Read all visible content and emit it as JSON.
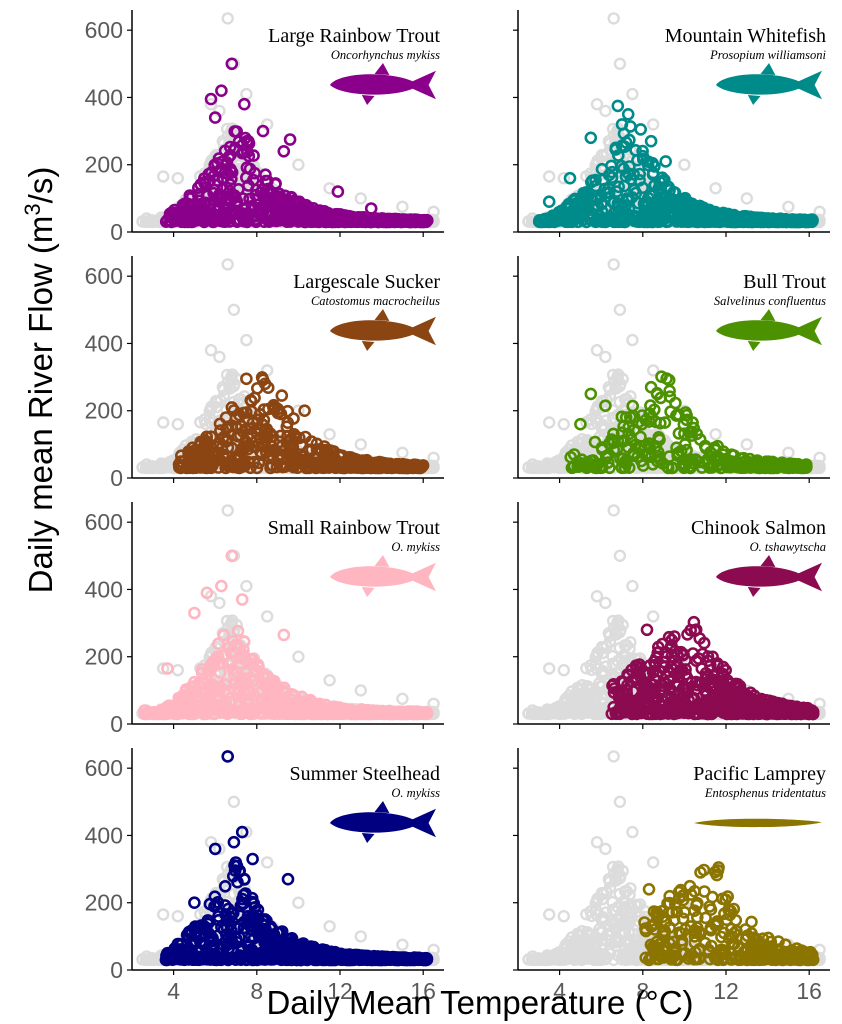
{
  "chart_data": {
    "type": "scatter",
    "xlabel": "Daily Mean Temperature (°C)",
    "ylabel": {
      "prefix": "Daily mean River Flow (m",
      "sup": "3",
      "suffix": "/s)"
    },
    "xlim": [
      2,
      17
    ],
    "ylim": [
      0,
      660
    ],
    "xticks": [
      "4",
      "8",
      "12",
      "16"
    ],
    "yticks": [
      "0",
      "200",
      "400",
      "600"
    ],
    "xtick_values": [
      4,
      8,
      12,
      16
    ],
    "ytick_values": [
      0,
      200,
      400,
      600
    ],
    "background_color": "#dcdcdc",
    "marker": "open circle",
    "panels": [
      {
        "title": "Large Rainbow Trout",
        "latin": "Oncorhynchus mykiss",
        "color": "#8b008b",
        "icon": "trout-icon",
        "tmin": 3.5,
        "tmax": 16.2,
        "peak": 7.2,
        "outliers": [
          [
            6.8,
            500
          ],
          [
            6.3,
            420
          ],
          [
            5.8,
            395
          ],
          [
            7.4,
            380
          ],
          [
            6.0,
            340
          ],
          [
            8.3,
            300
          ],
          [
            9.6,
            275
          ],
          [
            9.3,
            240
          ],
          [
            11.9,
            120
          ],
          [
            13.5,
            70
          ],
          [
            3.7,
            35
          ],
          [
            4.2,
            40
          ]
        ],
        "n": 700
      },
      {
        "title": "Mountain Whitefish",
        "latin": "Prosopium williamsoni",
        "color": "#008b8b",
        "icon": "whitefish-icon",
        "tmin": 3.0,
        "tmax": 16.2,
        "peak": 7.5,
        "outliers": [
          [
            6.8,
            375
          ],
          [
            7.3,
            350
          ],
          [
            7.0,
            320
          ],
          [
            7.9,
            305
          ],
          [
            5.5,
            280
          ],
          [
            4.5,
            160
          ],
          [
            3.5,
            90
          ],
          [
            3.2,
            35
          ],
          [
            8.4,
            270
          ],
          [
            9.1,
            210
          ]
        ],
        "n": 750
      },
      {
        "title": "Largescale Sucker",
        "latin": "Catostomus macrocheilus",
        "color": "#8b4513",
        "icon": "sucker-icon",
        "tmin": 4.2,
        "tmax": 16.0,
        "peak": 8.5,
        "outliers": [
          [
            7.5,
            295
          ],
          [
            8.4,
            280
          ],
          [
            9.2,
            245
          ],
          [
            10.3,
            200
          ],
          [
            6.8,
            210
          ],
          [
            5.2,
            70
          ],
          [
            4.4,
            35
          ],
          [
            7.0,
            180
          ]
        ],
        "n": 550
      },
      {
        "title": "Bull Trout",
        "latin": "Salvelinus confluentus",
        "color": "#4b9100",
        "icon": "bulltrout-icon",
        "tmin": 4.5,
        "tmax": 16.0,
        "peak": 9.0,
        "outliers": [
          [
            8.4,
            270
          ],
          [
            5.5,
            250
          ],
          [
            6.2,
            215
          ],
          [
            5.0,
            160
          ],
          [
            6.8,
            110
          ],
          [
            4.7,
            70
          ],
          [
            5.5,
            35
          ],
          [
            7.2,
            180
          ]
        ],
        "n": 300
      },
      {
        "title": "Small Rainbow Trout",
        "latin": "O. mykiss",
        "color": "#ffb6c1",
        "icon": "small-trout-icon",
        "tmin": 2.6,
        "tmax": 16.2,
        "peak": 7.0,
        "outliers": [
          [
            6.8,
            500
          ],
          [
            6.3,
            410
          ],
          [
            5.6,
            390
          ],
          [
            7.3,
            370
          ],
          [
            5.0,
            330
          ],
          [
            3.7,
            165
          ],
          [
            2.6,
            40
          ],
          [
            9.3,
            265
          ]
        ],
        "n": 750
      },
      {
        "title": "Chinook Salmon",
        "latin": "O. tshawytscha",
        "color": "#8b0a50",
        "icon": "salmon-icon",
        "tmin": 6.5,
        "tmax": 16.2,
        "peak": 10.5,
        "outliers": [
          [
            8.2,
            280
          ],
          [
            7.0,
            55
          ],
          [
            6.6,
            50
          ],
          [
            9.0,
            170
          ],
          [
            9.8,
            160
          ]
        ],
        "n": 650
      },
      {
        "title": "Summer Steelhead",
        "latin": "O. mykiss",
        "color": "#000080",
        "icon": "steelhead-icon",
        "tmin": 3.6,
        "tmax": 16.2,
        "peak": 7.0,
        "outliers": [
          [
            6.6,
            635
          ],
          [
            7.3,
            410
          ],
          [
            6.0,
            360
          ],
          [
            6.9,
            380
          ],
          [
            7.8,
            330
          ],
          [
            9.5,
            270
          ],
          [
            3.7,
            50
          ],
          [
            5.0,
            200
          ]
        ],
        "n": 800
      },
      {
        "title": "Pacific Lamprey",
        "latin": "Entosphenus tridentatus",
        "color": "#8b7500",
        "icon": "lamprey-icon",
        "tmin": 8.0,
        "tmax": 16.2,
        "peak": 11.5,
        "outliers": [
          [
            8.3,
            240
          ],
          [
            8.7,
            165
          ],
          [
            9.0,
            110
          ],
          [
            8.4,
            130
          ],
          [
            8.6,
            70
          ],
          [
            10.5,
            100
          ],
          [
            11.0,
            80
          ]
        ],
        "n": 300
      }
    ],
    "background": {
      "tmin": 2.5,
      "tmax": 16.5,
      "peak": 6.8,
      "outliers": [
        [
          6.6,
          635
        ],
        [
          6.9,
          500
        ],
        [
          7.5,
          410
        ],
        [
          5.8,
          380
        ],
        [
          6.2,
          360
        ],
        [
          3.5,
          165
        ],
        [
          4.2,
          160
        ],
        [
          2.7,
          40
        ],
        [
          8.5,
          320
        ],
        [
          10.0,
          200
        ],
        [
          11.5,
          130
        ],
        [
          13.0,
          100
        ],
        [
          15.0,
          75
        ],
        [
          16.5,
          60
        ]
      ],
      "n": 900
    }
  }
}
